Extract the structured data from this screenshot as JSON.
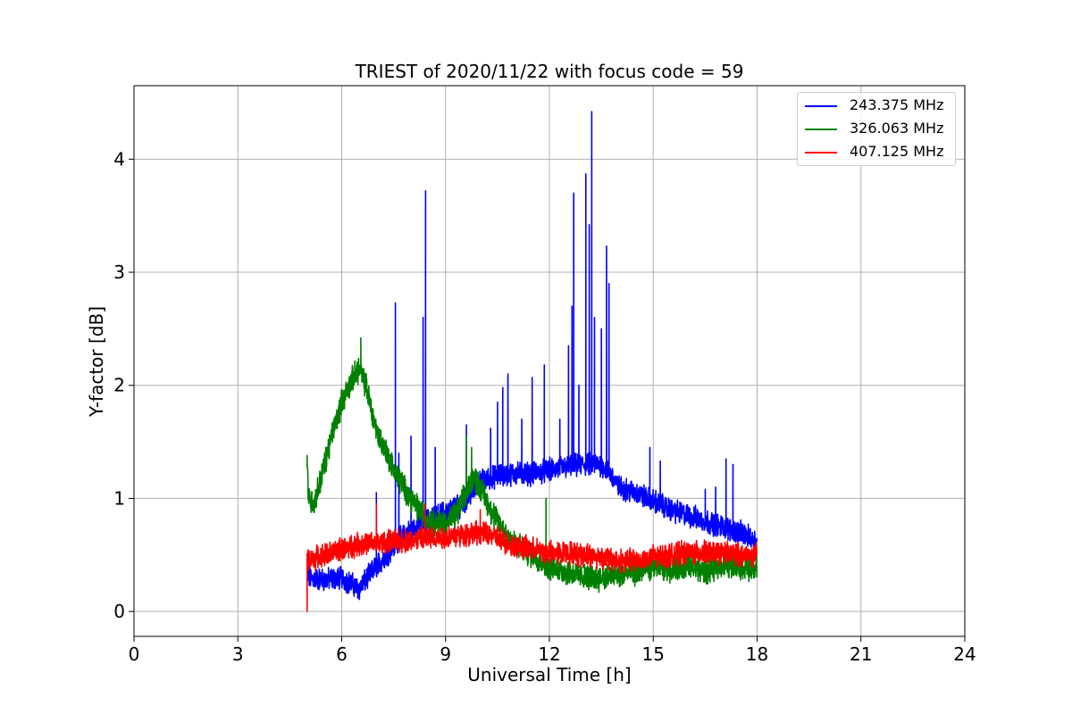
{
  "chart_data": {
    "type": "line",
    "title": "TRIEST of 2020/11/22 with focus code = 59",
    "xlabel": "Universal Time [h]",
    "ylabel": "Y-factor [dB]",
    "xlim": [
      0,
      24
    ],
    "ylim": [
      -0.22,
      4.65
    ],
    "x_ticks": [
      0,
      3,
      6,
      9,
      12,
      15,
      18,
      21,
      24
    ],
    "y_ticks": [
      0,
      1,
      2,
      3,
      4
    ],
    "grid": true,
    "legend_position": "top-right",
    "series": [
      {
        "name": "243.375 MHz",
        "color": "#0000ff",
        "noise": 0.08,
        "x": [
          5.0,
          5.5,
          6.0,
          6.5,
          6.8,
          7.0,
          7.3,
          7.6,
          8.0,
          8.4,
          8.8,
          9.0,
          9.5,
          10.0,
          10.5,
          11.0,
          11.5,
          12.0,
          12.5,
          13.0,
          13.5,
          13.8,
          14.0,
          14.5,
          15.0,
          15.5,
          16.0,
          16.5,
          17.0,
          17.5,
          18.0
        ],
        "y": [
          0.3,
          0.28,
          0.3,
          0.2,
          0.32,
          0.4,
          0.5,
          0.62,
          0.72,
          0.8,
          0.85,
          0.88,
          0.95,
          1.15,
          1.2,
          1.22,
          1.22,
          1.25,
          1.28,
          1.3,
          1.3,
          1.2,
          1.1,
          1.05,
          0.98,
          0.9,
          0.85,
          0.8,
          0.75,
          0.7,
          0.62
        ],
        "spikes": [
          {
            "x": 7.0,
            "y": 1.05
          },
          {
            "x": 7.55,
            "y": 2.73
          },
          {
            "x": 7.65,
            "y": 1.4
          },
          {
            "x": 8.0,
            "y": 1.55
          },
          {
            "x": 8.35,
            "y": 2.6
          },
          {
            "x": 8.42,
            "y": 3.72
          },
          {
            "x": 8.7,
            "y": 1.45
          },
          {
            "x": 9.6,
            "y": 1.65
          },
          {
            "x": 10.3,
            "y": 1.62
          },
          {
            "x": 10.5,
            "y": 1.85
          },
          {
            "x": 10.65,
            "y": 1.98
          },
          {
            "x": 10.8,
            "y": 2.1
          },
          {
            "x": 11.2,
            "y": 1.7
          },
          {
            "x": 11.5,
            "y": 2.07
          },
          {
            "x": 11.85,
            "y": 2.18
          },
          {
            "x": 12.3,
            "y": 1.7
          },
          {
            "x": 12.55,
            "y": 2.35
          },
          {
            "x": 12.65,
            "y": 2.7
          },
          {
            "x": 12.7,
            "y": 3.7
          },
          {
            "x": 12.85,
            "y": 2.0
          },
          {
            "x": 13.05,
            "y": 3.87
          },
          {
            "x": 13.15,
            "y": 3.42
          },
          {
            "x": 13.22,
            "y": 4.42
          },
          {
            "x": 13.3,
            "y": 2.6
          },
          {
            "x": 13.5,
            "y": 2.5
          },
          {
            "x": 13.65,
            "y": 3.23
          },
          {
            "x": 13.72,
            "y": 2.9
          },
          {
            "x": 14.9,
            "y": 1.45
          },
          {
            "x": 15.2,
            "y": 1.33
          },
          {
            "x": 16.5,
            "y": 1.08
          },
          {
            "x": 16.8,
            "y": 1.1
          },
          {
            "x": 17.1,
            "y": 1.35
          },
          {
            "x": 17.3,
            "y": 1.3
          }
        ]
      },
      {
        "name": "326.063 MHz",
        "color": "#008000",
        "noise": 0.09,
        "x": [
          5.0,
          5.05,
          5.2,
          5.5,
          5.8,
          6.0,
          6.3,
          6.5,
          6.7,
          7.0,
          7.3,
          7.6,
          8.0,
          8.5,
          9.0,
          9.3,
          9.6,
          9.8,
          10.0,
          10.3,
          10.6,
          11.0,
          11.5,
          12.0,
          12.5,
          13.0,
          13.5,
          14.0,
          14.5,
          15.0,
          15.5,
          16.0,
          16.5,
          17.0,
          17.5,
          18.0
        ],
        "y": [
          1.3,
          1.0,
          0.95,
          1.3,
          1.65,
          1.85,
          2.05,
          2.15,
          2.0,
          1.6,
          1.4,
          1.2,
          1.0,
          0.8,
          0.78,
          0.85,
          1.05,
          1.2,
          1.1,
          0.9,
          0.75,
          0.6,
          0.5,
          0.4,
          0.35,
          0.3,
          0.3,
          0.32,
          0.35,
          0.4,
          0.38,
          0.4,
          0.35,
          0.42,
          0.4,
          0.38
        ],
        "spikes": [
          {
            "x": 5.0,
            "y": 1.38
          },
          {
            "x": 6.55,
            "y": 2.42
          },
          {
            "x": 9.6,
            "y": 1.55
          },
          {
            "x": 9.75,
            "y": 1.45
          },
          {
            "x": 11.9,
            "y": 1.0
          }
        ]
      },
      {
        "name": "407.125 MHz",
        "color": "#ff0000",
        "noise": 0.08,
        "x": [
          5.0,
          5.5,
          6.0,
          6.5,
          7.0,
          7.5,
          8.0,
          8.5,
          9.0,
          9.5,
          10.0,
          10.5,
          11.0,
          11.5,
          12.0,
          12.5,
          13.0,
          13.5,
          14.0,
          14.5,
          15.0,
          15.5,
          16.0,
          16.5,
          17.0,
          17.5,
          18.0
        ],
        "y": [
          0.45,
          0.5,
          0.55,
          0.6,
          0.6,
          0.62,
          0.63,
          0.65,
          0.66,
          0.68,
          0.7,
          0.65,
          0.58,
          0.55,
          0.52,
          0.52,
          0.5,
          0.48,
          0.45,
          0.45,
          0.48,
          0.5,
          0.52,
          0.52,
          0.52,
          0.5,
          0.5
        ],
        "spikes": [
          {
            "x": 5.0,
            "y": 0.0
          },
          {
            "x": 7.0,
            "y": 0.95
          },
          {
            "x": 8.4,
            "y": 0.95
          },
          {
            "x": 10.0,
            "y": 0.9
          }
        ]
      }
    ]
  }
}
